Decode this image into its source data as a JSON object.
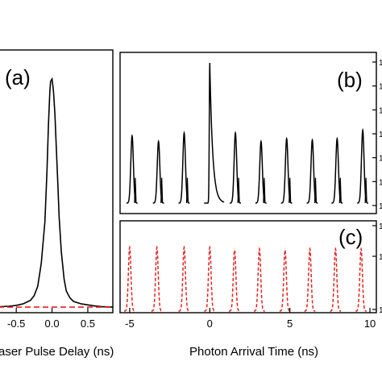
{
  "chart_data": [
    {
      "panel": "(a)",
      "type": "line",
      "xlabel": "aser Pulse Delay (ns)",
      "xlim": [
        -0.75,
        0.85
      ],
      "ylim": [
        0,
        1.1
      ],
      "xticks": [
        -0.5,
        0.0,
        0.5
      ],
      "x_tick_labels": [
        "-0.5",
        "0.0",
        "0.5"
      ],
      "series": [
        {
          "style": "solid",
          "color": "#000000",
          "x": [
            -0.75,
            -0.6,
            -0.5,
            -0.4,
            -0.3,
            -0.25,
            -0.2,
            -0.15,
            -0.1,
            -0.07,
            -0.05,
            -0.03,
            -0.02,
            0.0,
            0.02,
            0.04,
            0.06,
            0.08,
            0.1,
            0.13,
            0.17,
            0.2,
            0.25,
            0.3,
            0.4,
            0.5,
            0.6,
            0.7,
            0.85
          ],
          "y": [
            0.012,
            0.014,
            0.018,
            0.025,
            0.04,
            0.06,
            0.1,
            0.2,
            0.38,
            0.6,
            0.8,
            0.95,
            0.99,
            1.0,
            0.95,
            0.85,
            0.7,
            0.55,
            0.4,
            0.25,
            0.13,
            0.08,
            0.05,
            0.035,
            0.025,
            0.02,
            0.015,
            0.012,
            0.01
          ]
        },
        {
          "style": "dashed",
          "color": "#e8201e",
          "x": [
            -0.75,
            0.85
          ],
          "y": [
            0.01,
            0.01
          ]
        }
      ]
    },
    {
      "panel": "(b)",
      "type": "line",
      "xlim": [
        -5.6,
        10.4
      ],
      "ylim": [
        0,
        1.1
      ],
      "right_tick_labels": [
        "1",
        "1",
        "1",
        "1",
        "1",
        "1",
        "1"
      ],
      "peak_centers": [
        -4.85,
        -3.2,
        -1.6,
        0.0,
        1.6,
        3.2,
        4.8,
        6.4,
        7.95,
        9.55
      ],
      "peak_heights": [
        0.48,
        0.44,
        0.5,
        1.0,
        0.5,
        0.44,
        0.46,
        0.45,
        0.46,
        0.52
      ],
      "series": [
        {
          "style": "solid",
          "color": "#000000"
        }
      ]
    },
    {
      "panel": "(c)",
      "type": "line",
      "xlabel": "Photon Arrival Time (ns)",
      "xlim": [
        -5.6,
        10.4
      ],
      "ylim": [
        0,
        1.1
      ],
      "xticks": [
        -5,
        0,
        5,
        10
      ],
      "x_tick_labels": [
        "-5",
        "0",
        "5",
        "10"
      ],
      "right_tick_labels": [
        "1",
        "1",
        "1"
      ],
      "peak_centers": [
        -5.0,
        -3.3,
        -1.6,
        0.0,
        1.55,
        3.1,
        4.7,
        6.25,
        7.85,
        9.45
      ],
      "peak_heights": [
        0.94,
        0.94,
        0.94,
        0.94,
        0.9,
        0.92,
        0.9,
        0.92,
        0.92,
        0.92
      ],
      "series": [
        {
          "style": "dashed",
          "color": "#e8201e"
        }
      ]
    }
  ]
}
